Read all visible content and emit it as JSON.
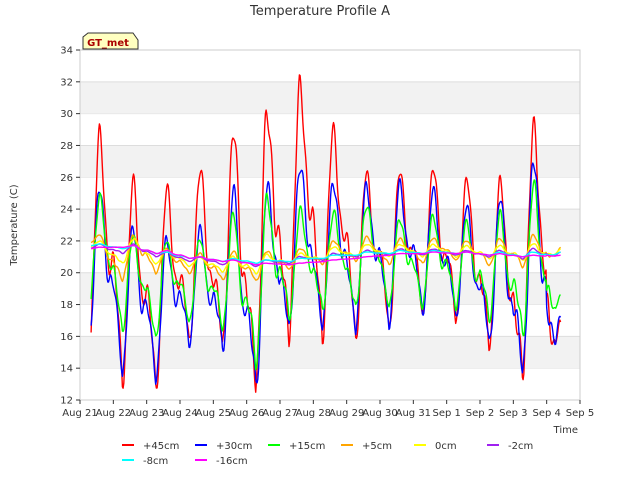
{
  "chart_data": {
    "type": "line",
    "title": "Temperature Profile A",
    "xlabel": "Time",
    "ylabel": "Temperature (C)",
    "site_label": "GT_met",
    "xlim": [
      "2023-08-21",
      "2023-09-05"
    ],
    "ylim": [
      12,
      34
    ],
    "grid": "horizontal bands",
    "legend_position": "bottom",
    "x_ticks": [
      "Aug 21",
      "Aug 22",
      "Aug 23",
      "Aug 24",
      "Aug 25",
      "Aug 26",
      "Aug 27",
      "Aug 28",
      "Aug 29",
      "Aug 30",
      "Aug 31",
      "Sep 1",
      "Sep 2",
      "Sep 3",
      "Sep 4",
      "Sep 5"
    ],
    "y_ticks": [
      12,
      14,
      16,
      18,
      20,
      22,
      24,
      26,
      28,
      30,
      32,
      34
    ],
    "x_start": "2023-08-21T08:00",
    "x_end": "2023-09-04T10:00",
    "series": [
      {
        "name": "+45cm",
        "color": "#ff0000",
        "daily_min": [
          15.0,
          13.5,
          13.0,
          15.5,
          15.0,
          12.2,
          15.6,
          15.8,
          16.0,
          16.7,
          17.5,
          17.0,
          15.2,
          13.0
        ],
        "daily_max": [
          28.7,
          25.4,
          24.9,
          26.3,
          29.0,
          30.6,
          32.5,
          29.3,
          26.3,
          26.2,
          26.3,
          25.7,
          25.8,
          29.7
        ],
        "end": 16.9
      },
      {
        "name": "+30cm",
        "color": "#0000ff",
        "daily_min": [
          15.5,
          13.8,
          13.6,
          15.7,
          15.2,
          12.4,
          16.0,
          16.2,
          16.5,
          17.0,
          17.7,
          17.3,
          15.5,
          13.3
        ],
        "daily_max": [
          25.6,
          22.8,
          21.8,
          22.5,
          25.0,
          25.5,
          27.1,
          26.0,
          25.6,
          25.5,
          25.0,
          24.0,
          24.6,
          27.2
        ],
        "end": 17.2
      },
      {
        "name": "+15cm",
        "color": "#00ff00",
        "daily_min": [
          17.6,
          16.3,
          16.0,
          17.0,
          16.6,
          14.2,
          17.0,
          17.4,
          17.6,
          17.8,
          18.0,
          18.0,
          17.2,
          16.0
        ],
        "daily_max": [
          25.0,
          22.4,
          22.0,
          22.0,
          23.5,
          24.5,
          24.0,
          24.0,
          24.5,
          23.5,
          23.5,
          23.0,
          23.5,
          25.4
        ],
        "end": 18.6
      },
      {
        "name": "+5cm",
        "color": "#ffa500",
        "daily_min": [
          21.8,
          19.5,
          20.0,
          20.0,
          19.6,
          19.5,
          20.2,
          20.5,
          20.7,
          20.5,
          20.6,
          20.8,
          20.5,
          20.4
        ],
        "daily_max": [
          22.4,
          22.4,
          21.5,
          21.2,
          21.3,
          21.3,
          21.5,
          22.0,
          22.3,
          22.2,
          22.2,
          22.0,
          22.1,
          22.3
        ],
        "end": 21.6
      },
      {
        "name": "0cm",
        "color": "#ffff00",
        "daily_min": [
          21.6,
          20.5,
          20.5,
          20.4,
          20.1,
          20.0,
          20.5,
          20.8,
          21.0,
          21.0,
          21.0,
          21.0,
          20.9,
          20.8
        ],
        "daily_max": [
          22.0,
          22.2,
          21.5,
          21.0,
          21.0,
          21.1,
          21.2,
          21.6,
          21.8,
          21.8,
          21.8,
          21.7,
          21.7,
          21.8
        ],
        "end": 21.5
      },
      {
        "name": "-2cm",
        "color": "#a020f0",
        "daily_min": [
          21.5,
          21.2,
          21.0,
          20.7,
          20.5,
          20.4,
          20.6,
          20.8,
          21.0,
          21.1,
          21.1,
          21.1,
          21.0,
          20.9
        ],
        "daily_max": [
          21.8,
          21.8,
          21.3,
          21.0,
          20.9,
          20.8,
          21.0,
          21.2,
          21.4,
          21.5,
          21.5,
          21.4,
          21.4,
          21.5
        ],
        "end": 21.3
      },
      {
        "name": "-8cm",
        "color": "#00ffff",
        "daily_min": [
          21.7,
          21.5,
          21.2,
          20.9,
          20.7,
          20.6,
          20.7,
          20.9,
          21.1,
          21.2,
          21.2,
          21.2,
          21.1,
          21.0
        ],
        "daily_max": [
          21.8,
          21.7,
          21.3,
          21.0,
          20.9,
          20.8,
          20.9,
          21.1,
          21.3,
          21.4,
          21.4,
          21.3,
          21.3,
          21.3
        ],
        "end": 21.3
      },
      {
        "name": "-16cm",
        "color": "#ff00ff",
        "daily_min": [
          21.5,
          21.6,
          21.2,
          20.9,
          20.7,
          20.5,
          20.5,
          20.7,
          20.9,
          21.1,
          21.2,
          21.2,
          21.1,
          21.0
        ],
        "daily_max": [
          21.6,
          21.7,
          21.4,
          21.0,
          20.8,
          20.6,
          20.6,
          20.8,
          21.0,
          21.2,
          21.3,
          21.3,
          21.2,
          21.1
        ],
        "end": 21.1
      }
    ]
  }
}
